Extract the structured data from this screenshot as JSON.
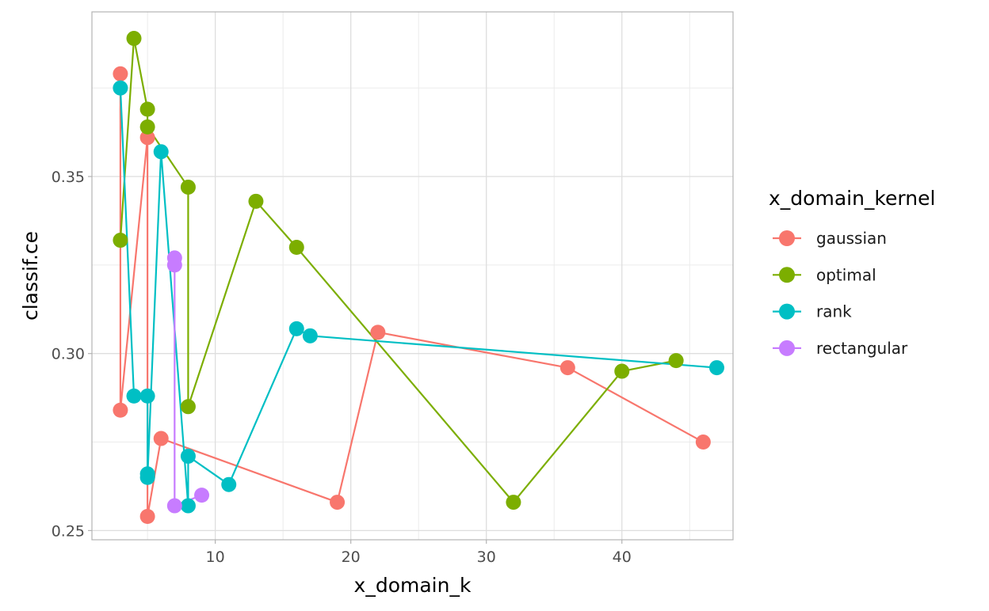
{
  "chart_data": {
    "type": "line",
    "xlabel": "x_domain_k",
    "ylabel": "classif.ce",
    "xlim": [
      0.9,
      48.2
    ],
    "ylim": [
      0.2474,
      0.3965
    ],
    "x_ticks": [
      10,
      20,
      30,
      40
    ],
    "y_ticks": [
      0.25,
      0.3,
      0.35
    ],
    "x_tick_labels": [
      "10",
      "20",
      "30",
      "40"
    ],
    "y_tick_labels": [
      "0.25",
      "0.30",
      "0.35"
    ],
    "grid": true,
    "legend_position": "right",
    "legend_title": "x_domain_kernel",
    "series": [
      {
        "name": "gaussian",
        "color": "#F8766D",
        "points": [
          [
            3,
            0.379
          ],
          [
            3,
            0.284
          ],
          [
            5,
            0.361
          ],
          [
            5,
            0.254
          ],
          [
            6,
            0.276
          ],
          [
            19,
            0.258
          ],
          [
            22,
            0.306
          ],
          [
            36,
            0.296
          ],
          [
            46,
            0.275
          ]
        ]
      },
      {
        "name": "optimal",
        "color": "#7CAE00",
        "points": [
          [
            3,
            0.332
          ],
          [
            4,
            0.389
          ],
          [
            5,
            0.369
          ],
          [
            5,
            0.364
          ],
          [
            8,
            0.347
          ],
          [
            8,
            0.285
          ],
          [
            13,
            0.343
          ],
          [
            16,
            0.33
          ],
          [
            32,
            0.258
          ],
          [
            40,
            0.295
          ],
          [
            44,
            0.298
          ]
        ]
      },
      {
        "name": "rank",
        "color": "#00BFC4",
        "points": [
          [
            3,
            0.375
          ],
          [
            4,
            0.288
          ],
          [
            5,
            0.288
          ],
          [
            5,
            0.266
          ],
          [
            5,
            0.265
          ],
          [
            6,
            0.357
          ],
          [
            8,
            0.257
          ],
          [
            8,
            0.271
          ],
          [
            11,
            0.263
          ],
          [
            16,
            0.307
          ],
          [
            17,
            0.305
          ],
          [
            47,
            0.296
          ]
        ]
      },
      {
        "name": "rectangular",
        "color": "#C77CFF",
        "points": [
          [
            7,
            0.327
          ],
          [
            7,
            0.325
          ],
          [
            7,
            0.257
          ],
          [
            9,
            0.26
          ]
        ]
      }
    ]
  }
}
